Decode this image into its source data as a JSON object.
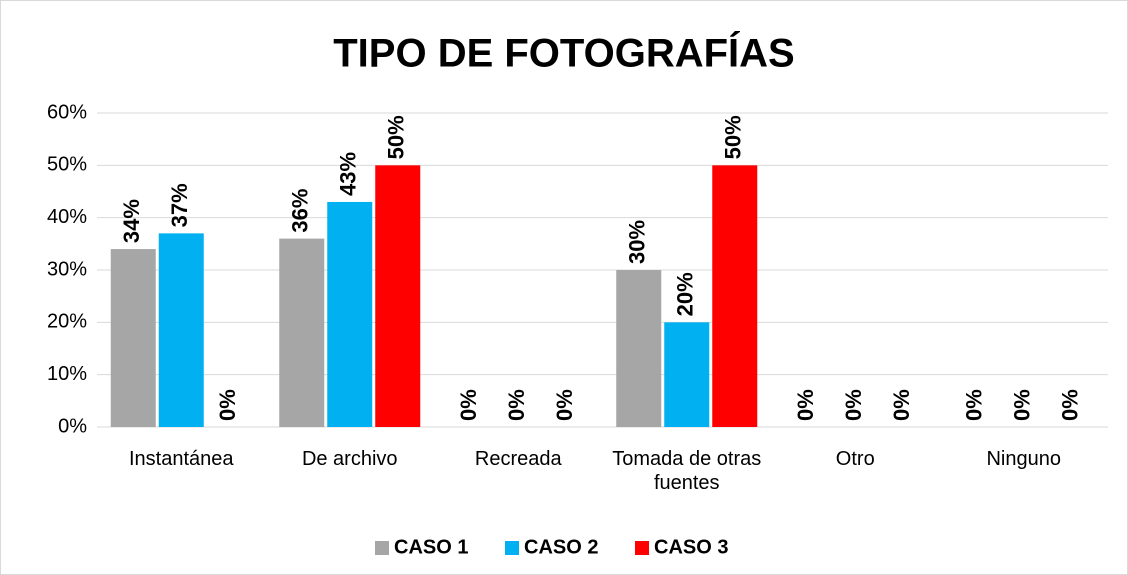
{
  "chart_data": {
    "type": "bar",
    "title": "TIPO DE FOTOGRAFÍAS",
    "categories": [
      "Instantánea",
      "De archivo",
      "Recreada",
      "Tomada de otras fuentes",
      "Otro",
      "Ninguno"
    ],
    "series": [
      {
        "name": "CASO 1",
        "color": "#a6a6a6",
        "values": [
          34,
          36,
          0,
          30,
          0,
          0
        ],
        "value_labels": [
          "34%",
          "36%",
          "0%",
          "30%",
          "0%",
          "0%"
        ]
      },
      {
        "name": "CASO 2",
        "color": "#00b0f0",
        "values": [
          37,
          43,
          0,
          20,
          0,
          0
        ],
        "value_labels": [
          "37%",
          "43%",
          "0%",
          "20%",
          "0%",
          "0%"
        ]
      },
      {
        "name": "CASO 3",
        "color": "#ff0000",
        "values": [
          0,
          50,
          0,
          50,
          0,
          0
        ],
        "value_labels": [
          "0%",
          "50%",
          "0%",
          "50%",
          "0%",
          "0%"
        ]
      }
    ],
    "ylim": [
      0,
      60
    ],
    "yticks": [
      {
        "value": 0,
        "label": "0%"
      },
      {
        "value": 10,
        "label": "10%"
      },
      {
        "value": 20,
        "label": "20%"
      },
      {
        "value": 30,
        "label": "30%"
      },
      {
        "value": 40,
        "label": "40%"
      },
      {
        "value": 50,
        "label": "50%"
      },
      {
        "value": 60,
        "label": "60%"
      }
    ],
    "grid": true,
    "legend": "bottom"
  }
}
